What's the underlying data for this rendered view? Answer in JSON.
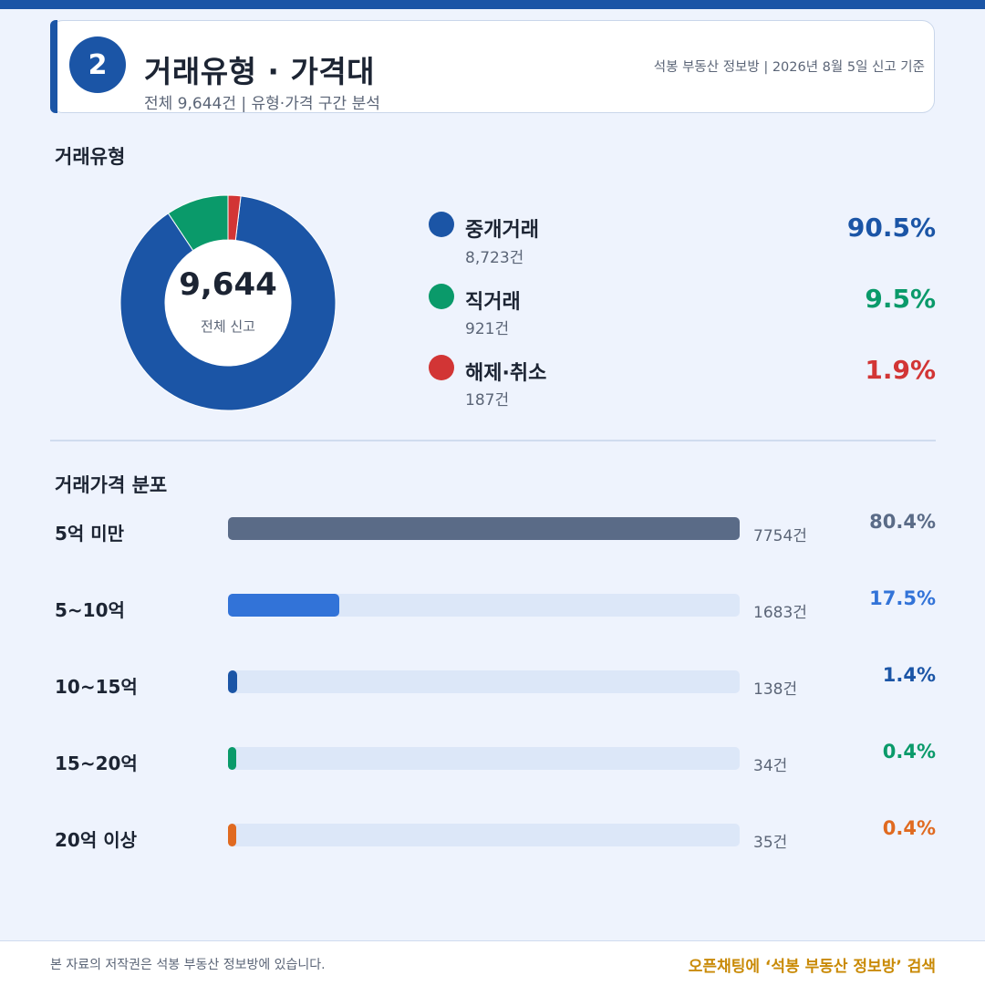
{
  "header": {
    "step": "2",
    "title": "거래유형 · 가격대",
    "subtitle": "전체 9,644건 | 유형·가격 구간 분석",
    "meta": "석봉 부동산 정보방 | 2026년 8월 5일 신고 기준"
  },
  "colors": {
    "brand": "#1b55a6",
    "green": "#0a9a6a",
    "red": "#d23535",
    "slate": "#5a6b87",
    "blue_light": "#3273d8",
    "navy": "#1b55a6",
    "orange": "#e06a20",
    "track": "#dce7f8"
  },
  "type_section": {
    "title": "거래유형",
    "total_value": "9,644",
    "total_caption": "전체 신고",
    "items": [
      {
        "name": "중개거래",
        "count": "8,723건",
        "pct": "90.5%",
        "value": 8723,
        "color": "#1b55a6"
      },
      {
        "name": "직거래",
        "count": "921건",
        "pct": "9.5%",
        "value": 921,
        "color": "#0a9a6a"
      },
      {
        "name": "해제·취소",
        "count": "187건",
        "pct": "1.9%",
        "value": 187,
        "color": "#d23535"
      }
    ]
  },
  "price_section": {
    "title": "거래가격 분포",
    "rows": [
      {
        "label": "5억 미만",
        "count": "7754건",
        "pct": "80.4%",
        "value": 80.4,
        "color": "#5a6b87"
      },
      {
        "label": "5~10억",
        "count": "1683건",
        "pct": "17.5%",
        "value": 17.5,
        "color": "#3273d8"
      },
      {
        "label": "10~15억",
        "count": "138건",
        "pct": "1.4%",
        "value": 1.4,
        "color": "#1b55a6"
      },
      {
        "label": "15~20억",
        "count": "34건",
        "pct": "0.4%",
        "value": 0.4,
        "color": "#0a9a6a"
      },
      {
        "label": "20억 이상",
        "count": "35건",
        "pct": "0.4%",
        "value": 0.4,
        "color": "#e06a20"
      }
    ]
  },
  "chart_data": [
    {
      "type": "pie",
      "title": "거래유형",
      "categories": [
        "중개거래",
        "직거래",
        "해제·취소"
      ],
      "values": [
        8723,
        921,
        187
      ],
      "percentages": [
        90.5,
        9.5,
        1.9
      ],
      "center_label": "9,644",
      "center_caption": "전체 신고"
    },
    {
      "type": "bar",
      "title": "거래가격 분포",
      "categories": [
        "5억 미만",
        "5~10억",
        "10~15억",
        "15~20억",
        "20억 이상"
      ],
      "values": [
        7754,
        1683,
        138,
        34,
        35
      ],
      "percentages": [
        80.4,
        17.5,
        1.4,
        0.4,
        0.4
      ]
    }
  ],
  "footer": {
    "copyright": "본 자료의 저작권은 석봉 부동산 정보방에 있습니다.",
    "cta": "오픈채팅에 ‘석봉 부동산 정보방’ 검색"
  }
}
